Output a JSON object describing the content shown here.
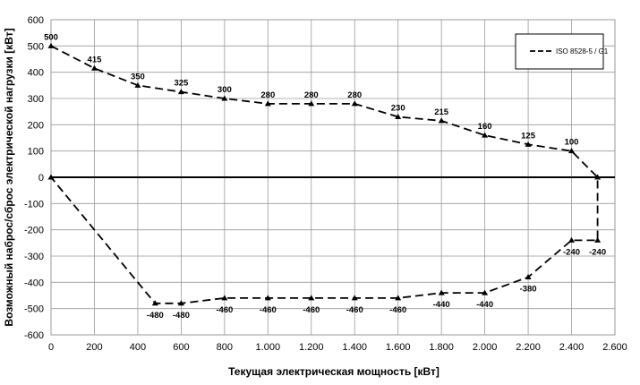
{
  "chart_data": {
    "type": "line",
    "xlabel": "Текущая электрическая мощность [кВт]",
    "ylabel": "Возможный наброс/сброс электрической нагрузки [кВт]",
    "xlim": [
      0,
      2600
    ],
    "ylim": [
      -600,
      600
    ],
    "x_ticks": [
      {
        "value": 0,
        "label": "0"
      },
      {
        "value": 200,
        "label": "200"
      },
      {
        "value": 400,
        "label": "400"
      },
      {
        "value": 600,
        "label": "600"
      },
      {
        "value": 800,
        "label": "800"
      },
      {
        "value": 1000,
        "label": "1.000"
      },
      {
        "value": 1200,
        "label": "1.200"
      },
      {
        "value": 1400,
        "label": "1.400"
      },
      {
        "value": 1600,
        "label": "1.600"
      },
      {
        "value": 1800,
        "label": "1.800"
      },
      {
        "value": 2000,
        "label": "2.000"
      },
      {
        "value": 2200,
        "label": "2.200"
      },
      {
        "value": 2400,
        "label": "2.400"
      },
      {
        "value": 2600,
        "label": "2.600"
      }
    ],
    "y_ticks": [
      {
        "value": 600,
        "label": "600"
      },
      {
        "value": 500,
        "label": "500"
      },
      {
        "value": 400,
        "label": "400"
      },
      {
        "value": 300,
        "label": "300"
      },
      {
        "value": 200,
        "label": "200"
      },
      {
        "value": 100,
        "label": "100"
      },
      {
        "value": 0,
        "label": "0"
      },
      {
        "value": -100,
        "label": "-100"
      },
      {
        "value": -200,
        "label": "-200"
      },
      {
        "value": -300,
        "label": "-300"
      },
      {
        "value": -400,
        "label": "-400"
      },
      {
        "value": -500,
        "label": "-500"
      },
      {
        "value": -600,
        "label": "-600"
      }
    ],
    "grid": true,
    "legend_position": "top-right",
    "series": [
      {
        "name": "ISO 8528-5 / G1",
        "color": "#000000",
        "style": "dashed",
        "points": [
          {
            "x": 0,
            "y": 500,
            "label": "500"
          },
          {
            "x": 200,
            "y": 415,
            "label": "415"
          },
          {
            "x": 400,
            "y": 350,
            "label": "350"
          },
          {
            "x": 600,
            "y": 325,
            "label": "325"
          },
          {
            "x": 800,
            "y": 300,
            "label": "300"
          },
          {
            "x": 1000,
            "y": 280,
            "label": "280"
          },
          {
            "x": 1200,
            "y": 280,
            "label": "280"
          },
          {
            "x": 1400,
            "y": 280,
            "label": "280"
          },
          {
            "x": 1600,
            "y": 230,
            "label": "230"
          },
          {
            "x": 1800,
            "y": 215,
            "label": "215"
          },
          {
            "x": 2000,
            "y": 160,
            "label": "160"
          },
          {
            "x": 2200,
            "y": 125,
            "label": "125"
          },
          {
            "x": 2400,
            "y": 100,
            "label": "100"
          },
          {
            "x": 2520,
            "y": 0,
            "label": ""
          },
          {
            "x": 2520,
            "y": -240,
            "label": "-240"
          },
          {
            "x": 2400,
            "y": -240,
            "label": "-240"
          },
          {
            "x": 2200,
            "y": -380,
            "label": "-380"
          },
          {
            "x": 2000,
            "y": -440,
            "label": "-440"
          },
          {
            "x": 1800,
            "y": -440,
            "label": "-440"
          },
          {
            "x": 1600,
            "y": -460,
            "label": "-460"
          },
          {
            "x": 1400,
            "y": -460,
            "label": "-460"
          },
          {
            "x": 1200,
            "y": -460,
            "label": "-460"
          },
          {
            "x": 1000,
            "y": -460,
            "label": "-460"
          },
          {
            "x": 800,
            "y": -460,
            "label": "-460"
          },
          {
            "x": 600,
            "y": -480,
            "label": "-480"
          },
          {
            "x": 480,
            "y": -480,
            "label": "-480"
          },
          {
            "x": 0,
            "y": 0,
            "label": ""
          }
        ]
      }
    ]
  }
}
